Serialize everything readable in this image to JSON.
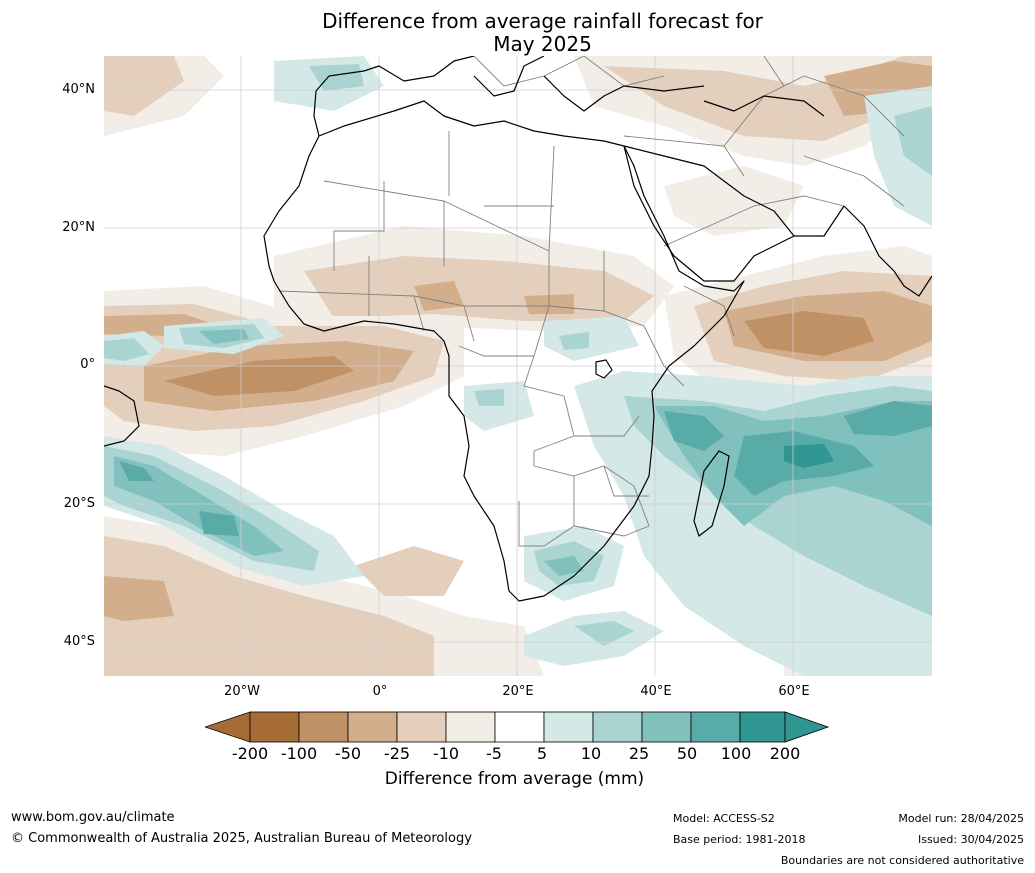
{
  "title": {
    "line1": "Difference from average rainfall forecast for",
    "line2": "May 2025"
  },
  "map": {
    "lat_labels": [
      "40°N",
      "20°N",
      "0°",
      "20°S",
      "40°S"
    ],
    "lon_labels": [
      "20°W",
      "0°",
      "20°E",
      "40°E",
      "60°E"
    ],
    "colors": {
      "brown_200": "#a66c35",
      "brown_100": "#bf9165",
      "brown_50": "#d3ae8d",
      "brown_25": "#e3cfbc",
      "brown_10": "#f2ede7",
      "neutral": "#ffffff",
      "teal_10": "#d3e8e7",
      "teal_25": "#a9d4d2",
      "teal_50": "#80c1be",
      "teal_100": "#59aba8",
      "teal_200": "#2f9692",
      "coast": "#000000",
      "border": "#808080",
      "grid": "#cfcfcf"
    }
  },
  "colorbar": {
    "labels": [
      "-200",
      "-100",
      "-50",
      "-25",
      "-10",
      "-5",
      "5",
      "10",
      "25",
      "50",
      "100",
      "200"
    ],
    "title": "Difference from average (mm)"
  },
  "footer": {
    "url": "www.bom.gov.au/climate",
    "copyright": "© Commonwealth of Australia 2025, Australian Bureau of Meteorology",
    "model": "Model: ACCESS-S2",
    "base_period": "Base period: 1981-2018",
    "model_run": "Model run: 28/04/2025",
    "issued": "Issued: 30/04/2025",
    "boundaries": "Boundaries are not considered authoritative"
  }
}
